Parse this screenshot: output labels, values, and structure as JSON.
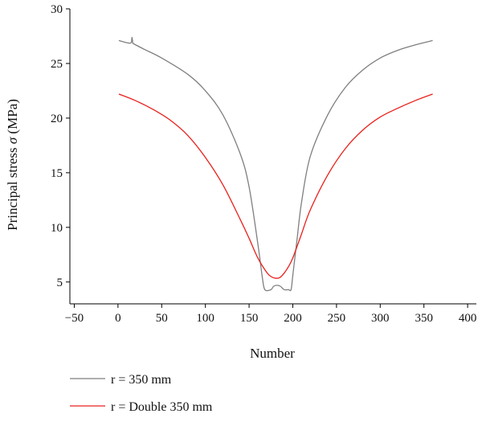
{
  "chart_data": {
    "type": "line",
    "xlabel": "Number",
    "ylabel_main": "Principal stress ",
    "ylabel_symbol": "σ",
    "ylabel_unit": " (MPa)",
    "xlim": [
      -55,
      410
    ],
    "ylim": [
      3,
      30
    ],
    "x_ticks": [
      -50,
      0,
      50,
      100,
      150,
      200,
      250,
      300,
      350,
      400
    ],
    "x_tick_labels": [
      "−50",
      "0",
      "50",
      "100",
      "150",
      "200",
      "250",
      "300",
      "350",
      "400"
    ],
    "y_ticks": [
      5,
      10,
      15,
      20,
      25,
      30
    ],
    "y_tick_labels": [
      "5",
      "10",
      "15",
      "20",
      "25",
      "30"
    ],
    "grid": false,
    "legend_position": "bottom-left-below-axes",
    "series": [
      {
        "name": "r = 350 mm",
        "color": "#7f7f7f",
        "x": [
          1,
          10,
          15,
          16,
          17,
          18,
          30,
          50,
          80,
          100,
          120,
          140,
          150,
          160,
          165,
          168,
          175,
          178,
          182,
          186,
          190,
          195,
          198,
          200,
          205,
          210,
          220,
          240,
          260,
          280,
          300,
          320,
          340,
          360
        ],
        "y": [
          27.1,
          26.9,
          26.9,
          27.4,
          26.9,
          26.8,
          26.3,
          25.5,
          24.0,
          22.5,
          20.3,
          16.7,
          13.7,
          8.5,
          5.5,
          4.3,
          4.3,
          4.6,
          4.7,
          4.6,
          4.3,
          4.3,
          4.3,
          5.6,
          9.0,
          12.3,
          16.5,
          20.3,
          22.8,
          24.4,
          25.5,
          26.2,
          26.7,
          27.1
        ]
      },
      {
        "name": "r = Double 350 mm",
        "color": "#e8201c",
        "x": [
          1,
          20,
          40,
          60,
          80,
          100,
          120,
          140,
          150,
          160,
          170,
          175,
          180,
          185,
          190,
          195,
          200,
          210,
          220,
          240,
          260,
          280,
          300,
          320,
          340,
          360
        ],
        "y": [
          22.2,
          21.6,
          20.8,
          19.8,
          18.4,
          16.4,
          13.9,
          10.7,
          9.0,
          7.2,
          5.9,
          5.5,
          5.35,
          5.4,
          5.8,
          6.4,
          7.2,
          9.4,
          11.6,
          14.8,
          17.2,
          18.9,
          20.1,
          20.9,
          21.6,
          22.2
        ]
      }
    ]
  }
}
